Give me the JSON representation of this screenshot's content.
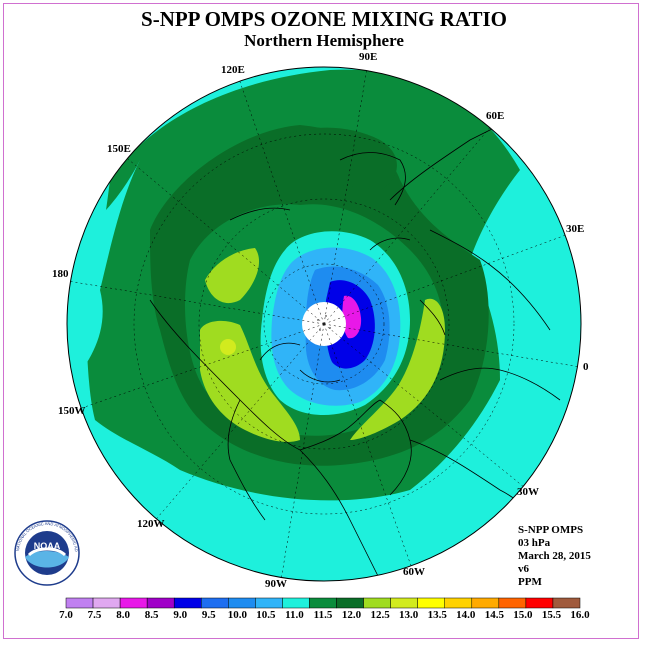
{
  "title": "S-NPP OMPS OZONE MIXING RATIO",
  "subtitle": "Northern Hemisphere",
  "longitude_labels": [
    "90E",
    "60E",
    "30E",
    "0",
    "30W",
    "60W",
    "90W",
    "120W",
    "150W",
    "180",
    "150E",
    "120E"
  ],
  "info": {
    "instrument": "S-NPP OMPS",
    "level": "03 hPa",
    "date": "March 28, 2015",
    "version": "v6",
    "units": "PPM"
  },
  "logo": {
    "text": "NOAA",
    "ring_text": "NATIONAL OCEANIC AND ATMOSPHERIC ADMINISTRATION"
  },
  "colorbar": {
    "labels": [
      "7.0",
      "7.5",
      "8.0",
      "8.5",
      "9.0",
      "9.5",
      "10.0",
      "10.5",
      "11.0",
      "11.5",
      "12.0",
      "12.5",
      "13.0",
      "13.5",
      "14.0",
      "14.5",
      "15.0",
      "15.5",
      "16.0"
    ],
    "colors": [
      "#c080f0",
      "#e0a8f0",
      "#e818e8",
      "#a000c8",
      "#0000e8",
      "#1e6ef0",
      "#1e8cf0",
      "#30b4f8",
      "#1ef0dc",
      "#0a8c3c",
      "#0a6e28",
      "#a0dc20",
      "#d2eb1e",
      "#ffff00",
      "#ffd200",
      "#ffaa00",
      "#ff6400",
      "#ff0000",
      "#a05a3c"
    ]
  },
  "map_colors": {
    "ocean_cyan": "#1ef0dc",
    "mid_green": "#0a8c3c",
    "dark_green": "#0a6e28",
    "yellow_green": "#a0dc20",
    "blue_light": "#30b4f8",
    "blue_mid": "#1e8cf0",
    "blue_deep": "#0000e8",
    "magenta": "#e818e8",
    "missing": "#ffffff"
  }
}
